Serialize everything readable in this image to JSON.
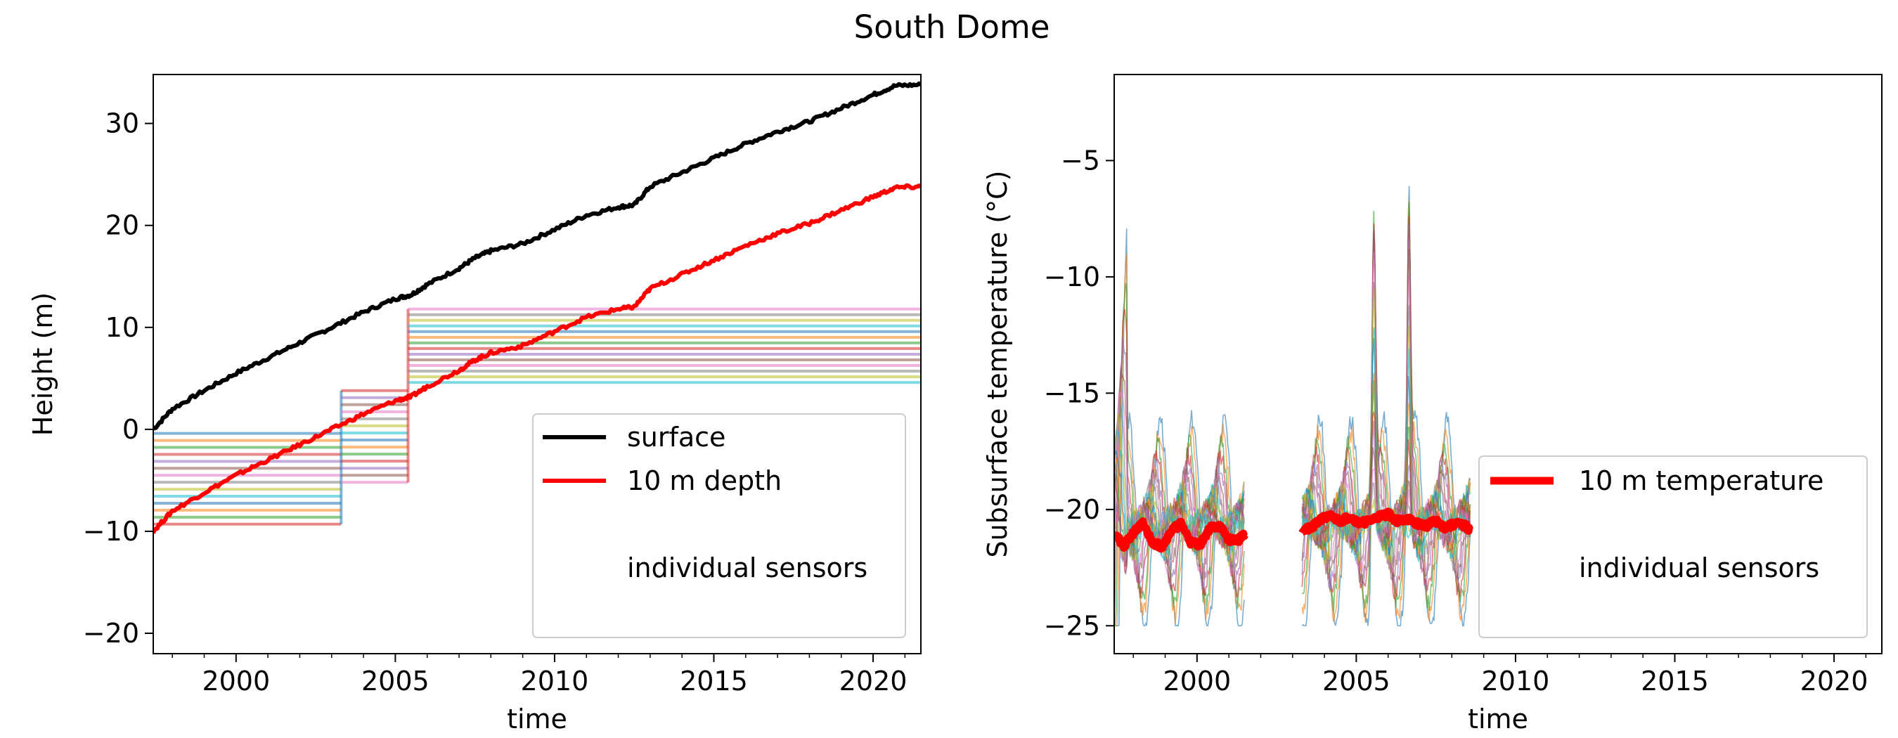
{
  "figure_title": "South Dome",
  "chart_data": [
    {
      "type": "line",
      "title": "",
      "xlabel": "time",
      "ylabel": "Height (m)",
      "xlim": [
        1997.4,
        2021.5
      ],
      "ylim": [
        -22,
        34.8
      ],
      "xticks": [
        2000,
        2005,
        2010,
        2015,
        2020
      ],
      "yticks": [
        -20,
        -10,
        0,
        10,
        20,
        30
      ],
      "grid": false,
      "legend_position": "lower-right",
      "legend": [
        "surface",
        "10 m depth",
        "individual sensors"
      ],
      "series": [
        {
          "name": "surface",
          "color": "#000000",
          "x": [
            1997.4,
            1998.0,
            1999.0,
            2000.0,
            2001.0,
            2002.0,
            2003.0,
            2004.0,
            2005.0,
            2005.5,
            2006.0,
            2007.0,
            2007.5,
            2008.0,
            2009.0,
            2010.0,
            2011.0,
            2012.0,
            2012.5,
            2013.0,
            2014.0,
            2015.0,
            2016.0,
            2017.0,
            2018.0,
            2019.0,
            2020.0,
            2020.7,
            2021.5
          ],
          "y": [
            0,
            2,
            3.8,
            5.5,
            7,
            8.5,
            10,
            11.5,
            12.8,
            13.2,
            14.2,
            15.8,
            16.8,
            17.5,
            18.2,
            19.6,
            21,
            21.8,
            22,
            23.8,
            25.2,
            26.6,
            28,
            29.2,
            30.2,
            31.5,
            32.8,
            33.7,
            33.8
          ]
        },
        {
          "name": "10 m depth",
          "color": "#ff0000",
          "x": [
            1997.4,
            1998.0,
            1999.0,
            2000.0,
            2001.0,
            2002.0,
            2003.0,
            2004.0,
            2005.0,
            2005.5,
            2006.0,
            2007.0,
            2007.5,
            2008.0,
            2009.0,
            2010.0,
            2011.0,
            2012.0,
            2012.5,
            2013.0,
            2014.0,
            2015.0,
            2016.0,
            2017.0,
            2018.0,
            2019.0,
            2020.0,
            2020.7,
            2021.5
          ],
          "y": [
            -10,
            -8,
            -6.2,
            -4.5,
            -3,
            -1.5,
            0,
            1.5,
            2.8,
            3.2,
            4.2,
            5.8,
            6.8,
            7.5,
            8.2,
            9.6,
            11,
            11.8,
            12,
            13.8,
            15.2,
            16.6,
            18,
            19.2,
            20.2,
            21.5,
            22.8,
            23.7,
            23.8
          ]
        }
      ],
      "sensor_segments": [
        {
          "x_start": 1997.4,
          "x_end": 2003.3,
          "y_low": -9.3,
          "y_high": -0.4,
          "count": 14
        },
        {
          "x_start": 2003.3,
          "x_end": 2005.4,
          "y_low": -5.2,
          "y_high": 3.8,
          "count": 14
        },
        {
          "x_start": 2005.4,
          "x_end": 2021.5,
          "y_low": 4.6,
          "y_high": 11.8,
          "count": 14
        }
      ]
    },
    {
      "type": "line",
      "title": "",
      "xlabel": "time",
      "ylabel": "Subsurface temperature (°C)",
      "xlim": [
        1997.4,
        2021.5
      ],
      "ylim": [
        -26.2,
        -1.3
      ],
      "xticks": [
        2000,
        2005,
        2010,
        2015,
        2020
      ],
      "yticks": [
        -25,
        -20,
        -15,
        -10,
        -5
      ],
      "grid": false,
      "legend_position": "lower-right",
      "legend": [
        "10 m temperature",
        "individual sensors"
      ],
      "series": [
        {
          "name": "10 m temperature",
          "color": "#ff0000",
          "x": [
            1997.4,
            1997.7,
            1998.0,
            1998.3,
            1998.6,
            1998.9,
            1999.2,
            1999.5,
            1999.8,
            2000.1,
            2000.4,
            2000.7,
            2001.0,
            2001.3,
            2001.5
          ],
          "y": [
            -21.0,
            -21.6,
            -21.0,
            -20.6,
            -21.4,
            -21.6,
            -20.9,
            -20.6,
            -21.4,
            -21.5,
            -20.8,
            -20.7,
            -21.3,
            -21.3,
            -21.1
          ]
        },
        {
          "name": "10 m temperature",
          "color": "#ff0000",
          "x": [
            2003.3,
            2003.6,
            2003.9,
            2004.2,
            2004.5,
            2004.8,
            2005.1,
            2005.4,
            2005.7,
            2006.0,
            2006.3,
            2006.6,
            2006.9,
            2007.2,
            2007.5,
            2007.8,
            2008.1,
            2008.4,
            2008.6
          ],
          "y": [
            -20.9,
            -20.8,
            -20.4,
            -20.3,
            -20.5,
            -20.3,
            -20.6,
            -20.5,
            -20.3,
            -20.2,
            -20.5,
            -20.4,
            -20.6,
            -20.7,
            -20.5,
            -20.8,
            -20.6,
            -20.7,
            -20.9
          ]
        }
      ],
      "sensor_data_gap": [
        2001.5,
        2003.3
      ]
    }
  ]
}
